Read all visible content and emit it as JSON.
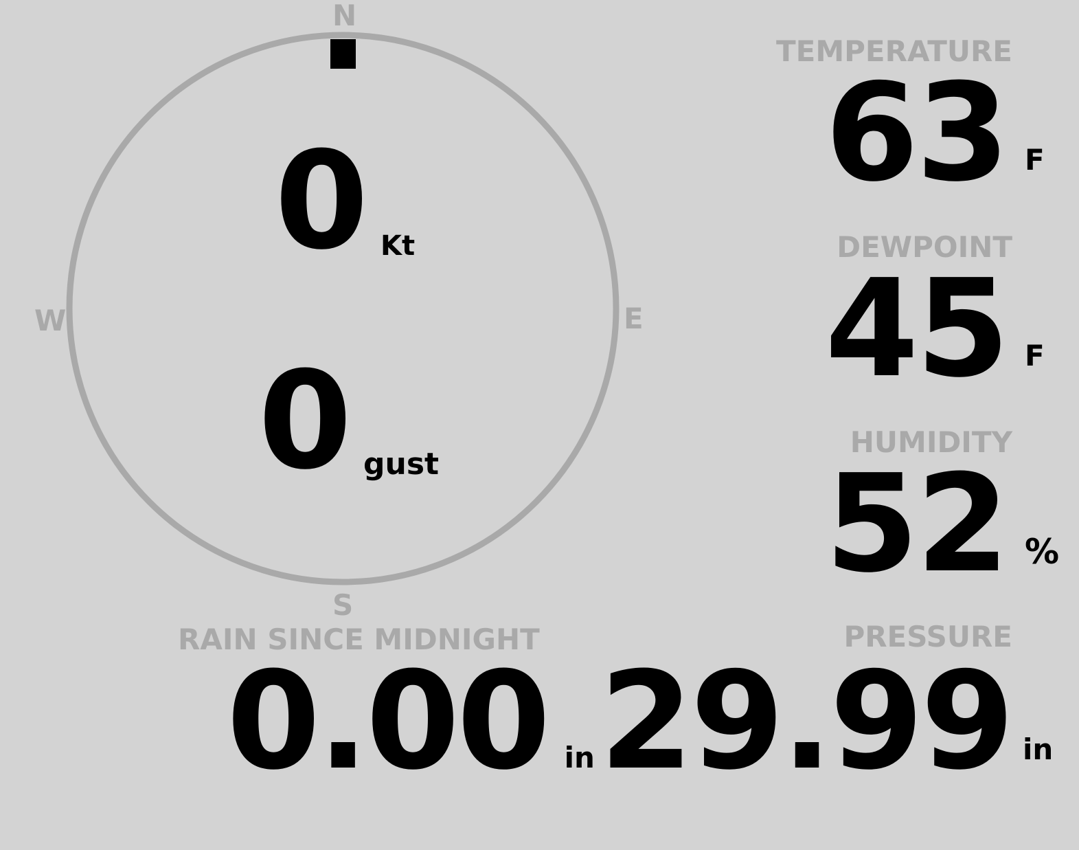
{
  "compass": {
    "north": "N",
    "south": "S",
    "east": "E",
    "west": "W",
    "direction_deg": 0
  },
  "wind": {
    "speed": "0",
    "speed_unit": "Kt",
    "gust": "0",
    "gust_unit": "gust"
  },
  "temperature": {
    "label": "TEMPERATURE",
    "value": "63",
    "unit": "F"
  },
  "dewpoint": {
    "label": "DEWPOINT",
    "value": "45",
    "unit": "F"
  },
  "humidity": {
    "label": "HUMIDITY",
    "value": "52",
    "unit": "%"
  },
  "rain": {
    "label": "RAIN SINCE MIDNIGHT",
    "value": "0.00",
    "unit": "in"
  },
  "pressure": {
    "label": "PRESSURE",
    "value": "29.99",
    "unit": "in"
  },
  "colors": {
    "background": "#d3d3d3",
    "dim": "#a9a9a9",
    "text": "#000000"
  }
}
